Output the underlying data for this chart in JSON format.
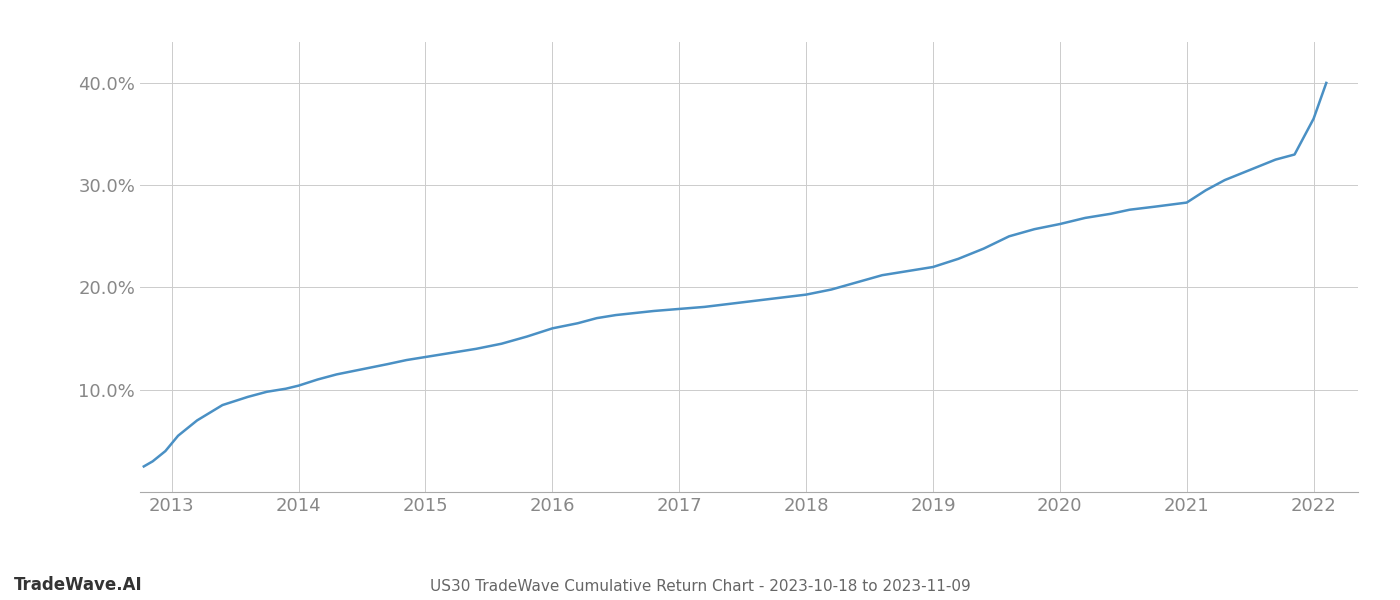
{
  "title": "US30 TradeWave Cumulative Return Chart - 2023-10-18 to 2023-11-09",
  "watermark": "TradeWave.AI",
  "line_color": "#4a90c4",
  "background_color": "#ffffff",
  "grid_color": "#cccccc",
  "x_years": [
    2013,
    2014,
    2015,
    2016,
    2017,
    2018,
    2019,
    2020,
    2021,
    2022
  ],
  "x_data": [
    2012.78,
    2012.85,
    2012.95,
    2013.05,
    2013.2,
    2013.4,
    2013.6,
    2013.75,
    2013.9,
    2014.0,
    2014.15,
    2014.3,
    2014.5,
    2014.7,
    2014.85,
    2015.0,
    2015.2,
    2015.4,
    2015.6,
    2015.8,
    2016.0,
    2016.2,
    2016.35,
    2016.5,
    2016.65,
    2016.8,
    2017.0,
    2017.2,
    2017.4,
    2017.6,
    2017.8,
    2018.0,
    2018.2,
    2018.4,
    2018.6,
    2018.8,
    2019.0,
    2019.2,
    2019.4,
    2019.6,
    2019.8,
    2020.0,
    2020.2,
    2020.4,
    2020.55,
    2020.75,
    2021.0,
    2021.15,
    2021.3,
    2021.5,
    2021.7,
    2021.85,
    2022.0,
    2022.1
  ],
  "y_data": [
    2.5,
    3.0,
    4.0,
    5.5,
    7.0,
    8.5,
    9.3,
    9.8,
    10.1,
    10.4,
    11.0,
    11.5,
    12.0,
    12.5,
    12.9,
    13.2,
    13.6,
    14.0,
    14.5,
    15.2,
    16.0,
    16.5,
    17.0,
    17.3,
    17.5,
    17.7,
    17.9,
    18.1,
    18.4,
    18.7,
    19.0,
    19.3,
    19.8,
    20.5,
    21.2,
    21.6,
    22.0,
    22.8,
    23.8,
    25.0,
    25.7,
    26.2,
    26.8,
    27.2,
    27.6,
    27.9,
    28.3,
    29.5,
    30.5,
    31.5,
    32.5,
    33.0,
    36.5,
    40.0
  ],
  "ylim": [
    0,
    44
  ],
  "yticks": [
    10.0,
    20.0,
    30.0,
    40.0
  ],
  "xlim": [
    2012.75,
    2022.35
  ],
  "title_fontsize": 11,
  "watermark_fontsize": 12,
  "tick_fontsize": 13,
  "line_width": 1.8,
  "title_color": "#666666",
  "tick_color": "#888888",
  "watermark_color": "#333333",
  "watermark_fontweight": "bold"
}
